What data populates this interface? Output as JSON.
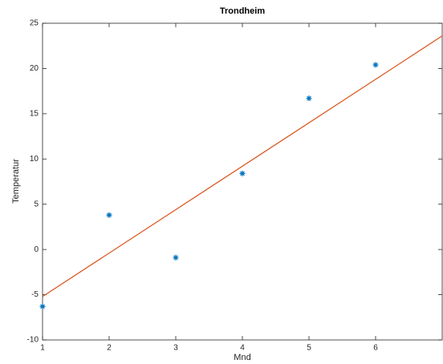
{
  "chart_data": {
    "type": "scatter",
    "title": "Trondheim",
    "x_label": "Mnd",
    "y_label": "Temperatur",
    "x": [
      1,
      2,
      3,
      4,
      5,
      6
    ],
    "values": [
      -6.3,
      3.8,
      -0.9,
      8.4,
      16.7,
      20.4
    ],
    "color": "#0072bd",
    "marker": "*",
    "fit": {
      "type": "line",
      "x": [
        1,
        7
      ],
      "values": [
        -5.2,
        23.6
      ],
      "color": "#d95319"
    },
    "xlim": [
      1,
      7
    ],
    "xticks": [
      1,
      2,
      3,
      4,
      5,
      6
    ],
    "ylim": [
      -10,
      25
    ],
    "yticks": [
      -10,
      -5,
      0,
      5,
      10,
      15,
      20,
      25
    ],
    "grid": false,
    "box": true
  }
}
